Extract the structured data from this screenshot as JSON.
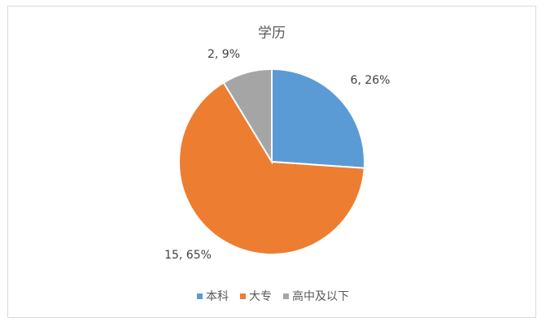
{
  "chart_data": {
    "type": "pie",
    "title": "学历",
    "categories": [
      "本科",
      "大专",
      "高中及以下"
    ],
    "values": [
      6,
      15,
      2
    ],
    "data_labels": [
      "6, 26%",
      "15, 65%",
      "2, 9%"
    ],
    "colors": [
      "#5b9bd5",
      "#ed7d31",
      "#a5a5a5"
    ],
    "legend_position": "bottom"
  }
}
